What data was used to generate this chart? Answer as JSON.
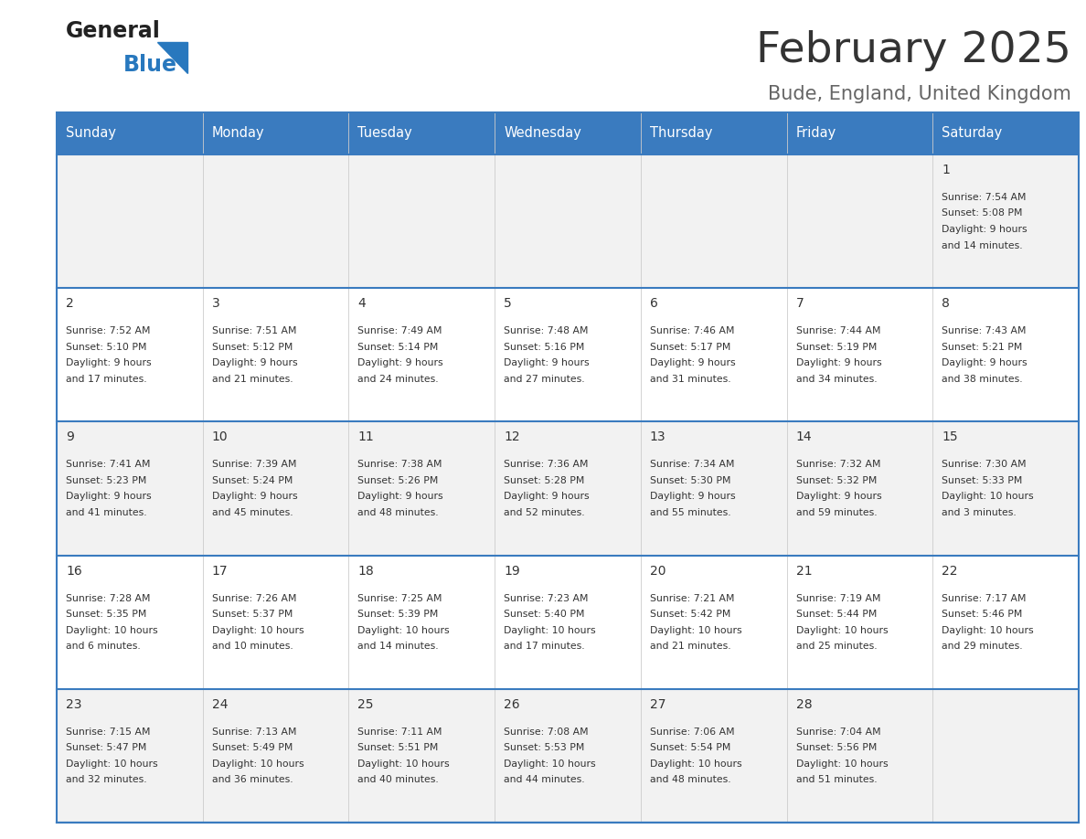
{
  "title": "February 2025",
  "subtitle": "Bude, England, United Kingdom",
  "days_of_week": [
    "Sunday",
    "Monday",
    "Tuesday",
    "Wednesday",
    "Thursday",
    "Friday",
    "Saturday"
  ],
  "header_bg": "#3a7bbf",
  "header_text": "#ffffff",
  "cell_bg_odd": "#f2f2f2",
  "cell_bg_even": "#ffffff",
  "cell_text": "#333333",
  "grid_line": "#3a7bbf",
  "title_color": "#333333",
  "subtitle_color": "#666666",
  "logo_general_color": "#222222",
  "logo_blue_color": "#2878be",
  "weeks": [
    [
      {
        "day": null,
        "sunrise": null,
        "sunset": null,
        "daylight": null
      },
      {
        "day": null,
        "sunrise": null,
        "sunset": null,
        "daylight": null
      },
      {
        "day": null,
        "sunrise": null,
        "sunset": null,
        "daylight": null
      },
      {
        "day": null,
        "sunrise": null,
        "sunset": null,
        "daylight": null
      },
      {
        "day": null,
        "sunrise": null,
        "sunset": null,
        "daylight": null
      },
      {
        "day": null,
        "sunrise": null,
        "sunset": null,
        "daylight": null
      },
      {
        "day": 1,
        "sunrise": "7:54 AM",
        "sunset": "5:08 PM",
        "daylight_h": "9 hours",
        "daylight_m": "and 14 minutes."
      }
    ],
    [
      {
        "day": 2,
        "sunrise": "7:52 AM",
        "sunset": "5:10 PM",
        "daylight_h": "9 hours",
        "daylight_m": "and 17 minutes."
      },
      {
        "day": 3,
        "sunrise": "7:51 AM",
        "sunset": "5:12 PM",
        "daylight_h": "9 hours",
        "daylight_m": "and 21 minutes."
      },
      {
        "day": 4,
        "sunrise": "7:49 AM",
        "sunset": "5:14 PM",
        "daylight_h": "9 hours",
        "daylight_m": "and 24 minutes."
      },
      {
        "day": 5,
        "sunrise": "7:48 AM",
        "sunset": "5:16 PM",
        "daylight_h": "9 hours",
        "daylight_m": "and 27 minutes."
      },
      {
        "day": 6,
        "sunrise": "7:46 AM",
        "sunset": "5:17 PM",
        "daylight_h": "9 hours",
        "daylight_m": "and 31 minutes."
      },
      {
        "day": 7,
        "sunrise": "7:44 AM",
        "sunset": "5:19 PM",
        "daylight_h": "9 hours",
        "daylight_m": "and 34 minutes."
      },
      {
        "day": 8,
        "sunrise": "7:43 AM",
        "sunset": "5:21 PM",
        "daylight_h": "9 hours",
        "daylight_m": "and 38 minutes."
      }
    ],
    [
      {
        "day": 9,
        "sunrise": "7:41 AM",
        "sunset": "5:23 PM",
        "daylight_h": "9 hours",
        "daylight_m": "and 41 minutes."
      },
      {
        "day": 10,
        "sunrise": "7:39 AM",
        "sunset": "5:24 PM",
        "daylight_h": "9 hours",
        "daylight_m": "and 45 minutes."
      },
      {
        "day": 11,
        "sunrise": "7:38 AM",
        "sunset": "5:26 PM",
        "daylight_h": "9 hours",
        "daylight_m": "and 48 minutes."
      },
      {
        "day": 12,
        "sunrise": "7:36 AM",
        "sunset": "5:28 PM",
        "daylight_h": "9 hours",
        "daylight_m": "and 52 minutes."
      },
      {
        "day": 13,
        "sunrise": "7:34 AM",
        "sunset": "5:30 PM",
        "daylight_h": "9 hours",
        "daylight_m": "and 55 minutes."
      },
      {
        "day": 14,
        "sunrise": "7:32 AM",
        "sunset": "5:32 PM",
        "daylight_h": "9 hours",
        "daylight_m": "and 59 minutes."
      },
      {
        "day": 15,
        "sunrise": "7:30 AM",
        "sunset": "5:33 PM",
        "daylight_h": "10 hours",
        "daylight_m": "and 3 minutes."
      }
    ],
    [
      {
        "day": 16,
        "sunrise": "7:28 AM",
        "sunset": "5:35 PM",
        "daylight_h": "10 hours",
        "daylight_m": "and 6 minutes."
      },
      {
        "day": 17,
        "sunrise": "7:26 AM",
        "sunset": "5:37 PM",
        "daylight_h": "10 hours",
        "daylight_m": "and 10 minutes."
      },
      {
        "day": 18,
        "sunrise": "7:25 AM",
        "sunset": "5:39 PM",
        "daylight_h": "10 hours",
        "daylight_m": "and 14 minutes."
      },
      {
        "day": 19,
        "sunrise": "7:23 AM",
        "sunset": "5:40 PM",
        "daylight_h": "10 hours",
        "daylight_m": "and 17 minutes."
      },
      {
        "day": 20,
        "sunrise": "7:21 AM",
        "sunset": "5:42 PM",
        "daylight_h": "10 hours",
        "daylight_m": "and 21 minutes."
      },
      {
        "day": 21,
        "sunrise": "7:19 AM",
        "sunset": "5:44 PM",
        "daylight_h": "10 hours",
        "daylight_m": "and 25 minutes."
      },
      {
        "day": 22,
        "sunrise": "7:17 AM",
        "sunset": "5:46 PM",
        "daylight_h": "10 hours",
        "daylight_m": "and 29 minutes."
      }
    ],
    [
      {
        "day": 23,
        "sunrise": "7:15 AM",
        "sunset": "5:47 PM",
        "daylight_h": "10 hours",
        "daylight_m": "and 32 minutes."
      },
      {
        "day": 24,
        "sunrise": "7:13 AM",
        "sunset": "5:49 PM",
        "daylight_h": "10 hours",
        "daylight_m": "and 36 minutes."
      },
      {
        "day": 25,
        "sunrise": "7:11 AM",
        "sunset": "5:51 PM",
        "daylight_h": "10 hours",
        "daylight_m": "and 40 minutes."
      },
      {
        "day": 26,
        "sunrise": "7:08 AM",
        "sunset": "5:53 PM",
        "daylight_h": "10 hours",
        "daylight_m": "and 44 minutes."
      },
      {
        "day": 27,
        "sunrise": "7:06 AM",
        "sunset": "5:54 PM",
        "daylight_h": "10 hours",
        "daylight_m": "and 48 minutes."
      },
      {
        "day": 28,
        "sunrise": "7:04 AM",
        "sunset": "5:56 PM",
        "daylight_h": "10 hours",
        "daylight_m": "and 51 minutes."
      },
      {
        "day": null,
        "sunrise": null,
        "sunset": null,
        "daylight_h": null,
        "daylight_m": null
      }
    ]
  ]
}
